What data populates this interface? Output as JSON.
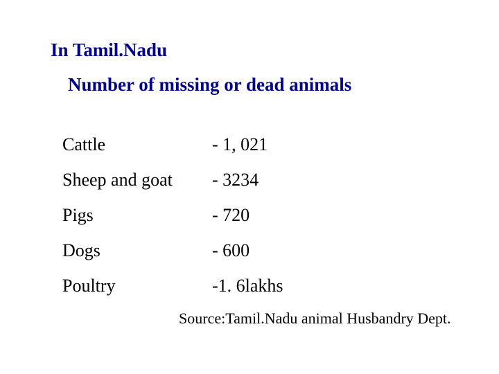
{
  "slide": {
    "heading": "In Tamil.Nadu",
    "subheading": "Number of missing or dead animals",
    "heading_color": "#000099",
    "subheading_color": "#000099",
    "rows": [
      {
        "label": "Cattle",
        "value": "- 1, 021"
      },
      {
        "label": "Sheep and goat",
        "value": "- 3234"
      },
      {
        "label": "Pigs",
        "value": "- 720"
      },
      {
        "label": "Dogs",
        "value": "- 600"
      },
      {
        "label": "Poultry",
        "value": "-1. 6lakhs"
      }
    ],
    "source": "Source:Tamil.Nadu animal Husbandry Dept."
  }
}
